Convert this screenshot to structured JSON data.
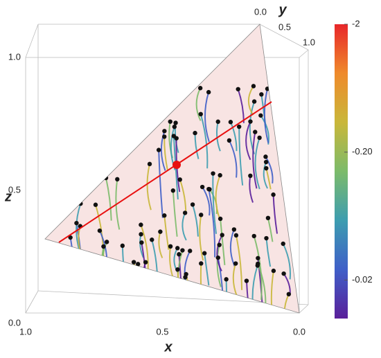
{
  "chart_data": {
    "type": "stream3d",
    "axes": {
      "x": {
        "label": "x",
        "ticks": [
          {
            "value": 1,
            "label": "1.0"
          },
          0.5,
          {
            "value": 0,
            "label": "0.0"
          }
        ]
      },
      "y": {
        "label": "y",
        "ticks": [
          {
            "value": 0,
            "label": "0.0"
          },
          0.5,
          {
            "value": 1,
            "label": "1.0"
          }
        ]
      },
      "z": {
        "label": "z",
        "ticks": [
          {
            "value": 0,
            "label": "0.0"
          },
          0.5,
          {
            "value": 1,
            "label": "1.0"
          }
        ]
      }
    },
    "colorbar": {
      "scale": "log",
      "clim": [
        -2,
        -0.01
      ],
      "ticks": [
        -2,
        {
          "value": -0.2,
          "label": "-0.20"
        },
        -0.02
      ],
      "colors": [
        "#e8262a",
        "#ef8a2b",
        "#c9b73a",
        "#7cbb6a",
        "#3d9db0",
        "#3f5fc8",
        "#5a1f9a"
      ]
    },
    "line_color": "#e81010",
    "plane_color": "#f8e4e3"
  }
}
